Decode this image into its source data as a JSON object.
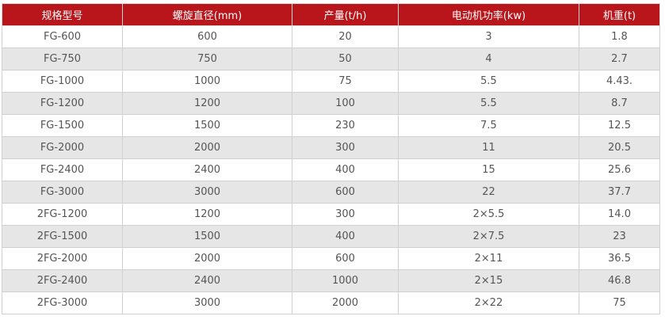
{
  "header": {
    "colors": {
      "header_bg": "#b8161b",
      "alt_row": "#e6e6e6"
    },
    "columns": [
      "规格型号",
      "螺旋直径(mm)",
      "产量(t/h)",
      "电动机功率(kw)",
      "机重(t)"
    ]
  },
  "rows": [
    [
      "FG-600",
      "600",
      "20",
      "3",
      "1.8"
    ],
    [
      "FG-750",
      "750",
      "50",
      "4",
      "2.7"
    ],
    [
      "FG-1000",
      "1000",
      "75",
      "5.5",
      "4.43."
    ],
    [
      "FG-1200",
      "1200",
      "100",
      "5.5",
      "8.7"
    ],
    [
      "FG-1500",
      "1500",
      "230",
      "7.5",
      "12.5"
    ],
    [
      "FG-2000",
      "2000",
      "300",
      "11",
      "20.5"
    ],
    [
      "FG-2400",
      "2400",
      "400",
      "15",
      "25.6"
    ],
    [
      "FG-3000",
      "3000",
      "600",
      "22",
      "37.7"
    ],
    [
      "2FG-1200",
      "1200",
      "300",
      "2×5.5",
      "14.0"
    ],
    [
      "2FG-1500",
      "1500",
      "400",
      "2×7.5",
      "23"
    ],
    [
      "2FG-2000",
      "2000",
      "600",
      "2×11",
      "36.5"
    ],
    [
      "2FG-2400",
      "2400",
      "1000",
      "2×15",
      "46.8"
    ],
    [
      "2FG-3000",
      "3000",
      "2000",
      "2×22",
      "75"
    ]
  ]
}
